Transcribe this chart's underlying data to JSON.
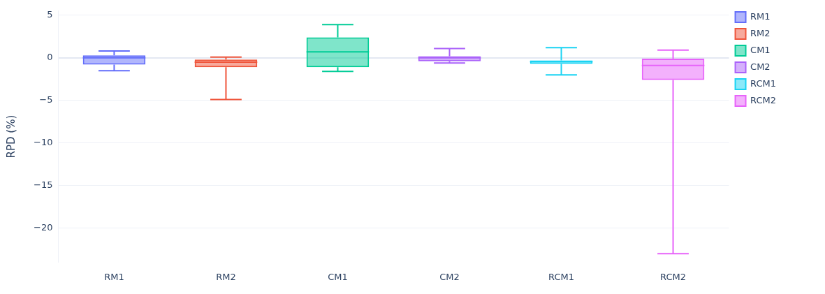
{
  "chart_data": {
    "type": "box",
    "ylabel": "RPD (%)",
    "categories": [
      "RM1",
      "RM2",
      "CM1",
      "CM2",
      "RCM1",
      "RCM2"
    ],
    "series": [
      {
        "name": "RM1",
        "color": "#636efa",
        "x": [
          "RM1"
        ],
        "boxes": [
          {
            "low": -1.5,
            "q1": -0.8,
            "median": 0,
            "q3": 0.3,
            "high": 0.8
          }
        ]
      },
      {
        "name": "RM2",
        "color": "#ef553b",
        "x": [
          "RM2"
        ],
        "boxes": [
          {
            "low": -4.9,
            "q1": -1.1,
            "median": -0.5,
            "q3": -0.2,
            "high": 0.1
          }
        ]
      },
      {
        "name": "CM1",
        "color": "#00cc96",
        "x": [
          "CM1"
        ],
        "boxes": [
          {
            "low": -1.6,
            "q1": -1.1,
            "median": 0.7,
            "q3": 2.4,
            "high": 3.9
          }
        ]
      },
      {
        "name": "CM2",
        "color": "#ab63fa",
        "x": [
          "CM2"
        ],
        "boxes": [
          {
            "low": -0.6,
            "q1": -0.4,
            "median": 0,
            "q3": 0.2,
            "high": 1.1
          }
        ]
      },
      {
        "name": "RCM1",
        "color": "#19d3f3",
        "x": [
          "RCM1"
        ],
        "boxes": [
          {
            "low": -2,
            "q1": -0.7,
            "median": -0.45,
            "q3": -0.3,
            "high": 1.2
          }
        ]
      },
      {
        "name": "RCM2",
        "color": "#e763fa",
        "x": [
          "RCM2"
        ],
        "boxes": [
          {
            "low": -23,
            "q1": -2.6,
            "median": -0.9,
            "q3": -0.1,
            "high": 0.9
          }
        ]
      }
    ],
    "ylim": [
      -24,
      5.5
    ],
    "yticks": [
      {
        "value": -20,
        "label": "−20"
      },
      {
        "value": -15,
        "label": "−15"
      },
      {
        "value": -10,
        "label": "−10"
      },
      {
        "value": -5,
        "label": "−5"
      },
      0,
      5
    ],
    "grid": "y",
    "legend": "top right"
  }
}
